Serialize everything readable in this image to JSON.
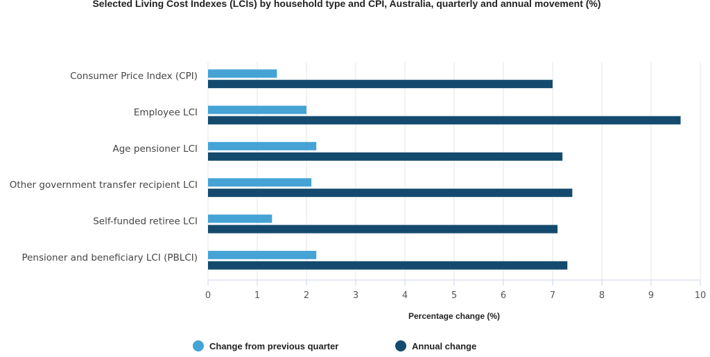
{
  "colors": {
    "quarter": "#45a3d6",
    "annual": "#144a6e",
    "grid": "#e6e6e6",
    "axis": "#ccd6eb"
  },
  "chart_data": {
    "type": "bar",
    "orientation": "horizontal",
    "title": "Selected Living Cost Indexes (LCIs) by household type and CPI, Australia, quarterly and annual movement (%)",
    "xlabel": "Percentage change (%)",
    "xlim": [
      0,
      10
    ],
    "xticks": [
      "0",
      "1",
      "2",
      "3",
      "4",
      "5",
      "6",
      "7",
      "8",
      "9",
      "10"
    ],
    "grid": true,
    "legend_position": "bottom",
    "categories": [
      "Consumer Price Index (CPI)",
      "Employee LCI",
      "Age pensioner LCI",
      "Other government transfer recipient LCI",
      "Self-funded retiree LCI",
      "Pensioner and beneficiary LCI (PBLCI)"
    ],
    "series": [
      {
        "name": "Change from previous quarter",
        "values": [
          1.4,
          2.0,
          2.2,
          2.1,
          1.3,
          2.2
        ]
      },
      {
        "name": "Annual change",
        "values": [
          7.0,
          9.6,
          7.2,
          7.4,
          7.1,
          7.3
        ]
      }
    ]
  }
}
